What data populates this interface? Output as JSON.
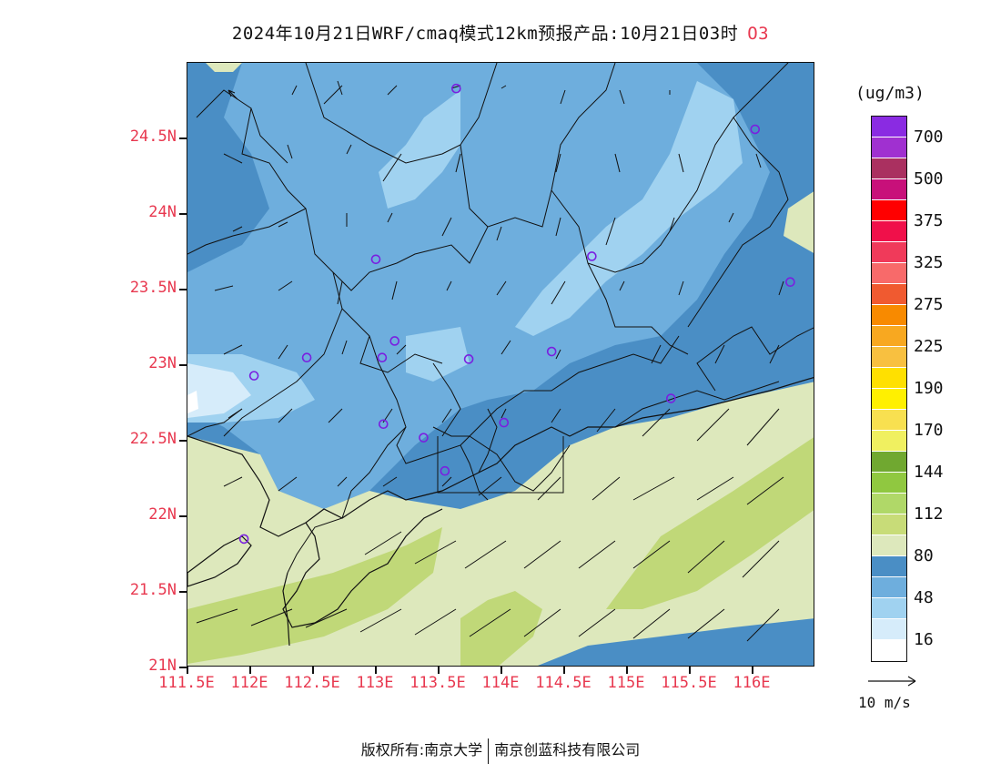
{
  "title": {
    "text": "2024年10月21日WRF/cmaq模式12km预报产品:10月21日03时",
    "species": "O3"
  },
  "map": {
    "lat_labels": [
      "24.5N",
      "24N",
      "23.5N",
      "23N",
      "22.5N",
      "22N",
      "21.5N",
      "21N"
    ],
    "lon_labels": [
      "111.5E",
      "112E",
      "112.5E",
      "113E",
      "113.5E",
      "114E",
      "114.5E",
      "115E",
      "115.5E",
      "116E"
    ],
    "lat_values": [
      24.5,
      24.0,
      23.5,
      23.0,
      22.5,
      22.0,
      21.5,
      21.0
    ],
    "lon_values": [
      111.5,
      112.0,
      112.5,
      113.0,
      113.5,
      114.0,
      114.5,
      115.0,
      115.5,
      116.0
    ],
    "lat_range": [
      21.0,
      25.0
    ],
    "lon_range": [
      111.5,
      116.5
    ],
    "stations": [
      {
        "lon": 113.64,
        "lat": 24.83
      },
      {
        "lon": 116.02,
        "lat": 24.56
      },
      {
        "lon": 113.0,
        "lat": 23.7
      },
      {
        "lon": 114.72,
        "lat": 23.72
      },
      {
        "lon": 116.3,
        "lat": 23.55
      },
      {
        "lon": 112.45,
        "lat": 23.05
      },
      {
        "lon": 113.05,
        "lat": 23.05
      },
      {
        "lon": 113.15,
        "lat": 23.16
      },
      {
        "lon": 113.74,
        "lat": 23.04
      },
      {
        "lon": 114.4,
        "lat": 23.09
      },
      {
        "lon": 112.03,
        "lat": 22.93
      },
      {
        "lon": 115.35,
        "lat": 22.78
      },
      {
        "lon": 113.06,
        "lat": 22.61
      },
      {
        "lon": 114.02,
        "lat": 22.62
      },
      {
        "lon": 113.38,
        "lat": 22.52
      },
      {
        "lon": 113.55,
        "lat": 22.3
      },
      {
        "lon": 111.95,
        "lat": 21.85
      }
    ]
  },
  "legend": {
    "unit": "(ug/m3)",
    "colors": [
      "#8a2be2",
      "#a030d0",
      "#aa3060",
      "#c8107a",
      "#ff0000",
      "#f0104a",
      "#f03a5a",
      "#f86a6a",
      "#f05a30",
      "#f88a00",
      "#f8a820",
      "#f8c040",
      "#ffe000",
      "#fff000",
      "#f8e050",
      "#f0f060",
      "#70a830",
      "#90c840",
      "#b0d868",
      "#c8dc78",
      "#dde8bc",
      "#4a8ec5",
      "#6eaedd",
      "#a0d2f0",
      "#d6ecfa",
      "#ffffff"
    ],
    "labels": [
      {
        "text": "700",
        "index": 1
      },
      {
        "text": "500",
        "index": 3
      },
      {
        "text": "375",
        "index": 5
      },
      {
        "text": "325",
        "index": 7
      },
      {
        "text": "275",
        "index": 9
      },
      {
        "text": "225",
        "index": 11
      },
      {
        "text": "190",
        "index": 13
      },
      {
        "text": "170",
        "index": 15
      },
      {
        "text": "144",
        "index": 17
      },
      {
        "text": "112",
        "index": 19
      },
      {
        "text": "80",
        "index": 21
      },
      {
        "text": "48",
        "index": 23
      },
      {
        "text": "16",
        "index": 25
      }
    ]
  },
  "wind_reference": {
    "label": "10 m/s"
  },
  "copyright": {
    "left": "版权所有:南京大学",
    "right": "南京创蓝科技有限公司"
  }
}
